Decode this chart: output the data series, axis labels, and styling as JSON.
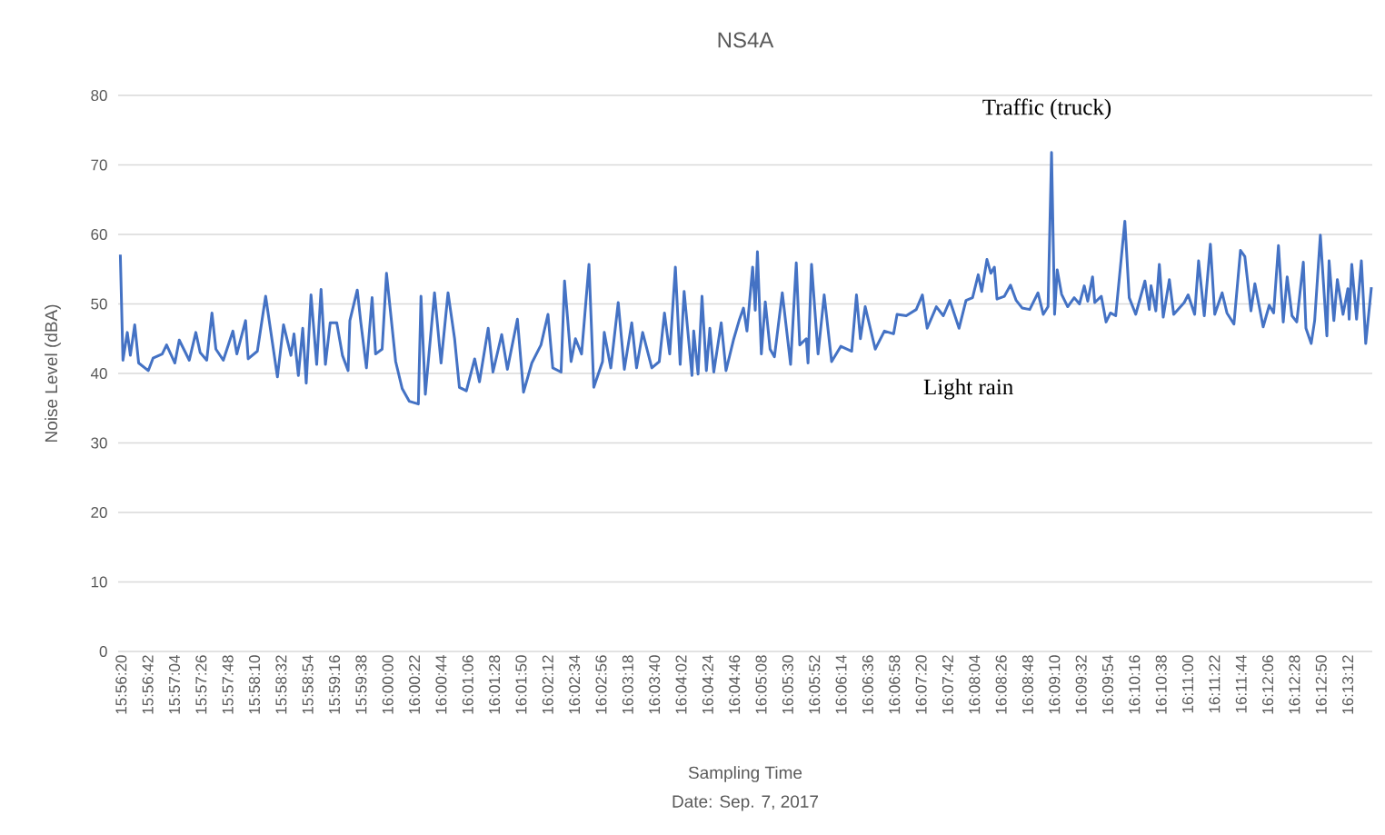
{
  "chart_data": {
    "type": "line",
    "title": "NS4A",
    "xlabel": "Sampling Time",
    "ylabel": "Noise Level (dBA)",
    "annotations": [
      "Traffic (truck)",
      "Light rain",
      "Date: Sep. 7, 2017"
    ],
    "color": "#4472c4",
    "grid": "y",
    "marker": "none",
    "line_style": "solid",
    "xlim": [
      15.9382,
      16.2256
    ],
    "ylim": [
      0,
      80
    ],
    "yticks": [
      0,
      10,
      20,
      30,
      40,
      50,
      60,
      70,
      80
    ],
    "xticks": [
      {
        "value": 15.938889,
        "label": "15:56:20"
      },
      {
        "value": 15.945,
        "label": "15:56:42"
      },
      {
        "value": 15.951111,
        "label": "15:57:04"
      },
      {
        "value": 15.957222,
        "label": "15:57:26"
      },
      {
        "value": 15.963333,
        "label": "15:57:48"
      },
      {
        "value": 15.969444,
        "label": "15:58:10"
      },
      {
        "value": 15.975556,
        "label": "15:58:32"
      },
      {
        "value": 15.981667,
        "label": "15:58:54"
      },
      {
        "value": 15.987778,
        "label": "15:59:16"
      },
      {
        "value": 15.993889,
        "label": "15:59:38"
      },
      {
        "value": 16.0,
        "label": "16:00:00"
      },
      {
        "value": 16.006111,
        "label": "16:00:22"
      },
      {
        "value": 16.012222,
        "label": "16:00:44"
      },
      {
        "value": 16.018333,
        "label": "16:01:06"
      },
      {
        "value": 16.024444,
        "label": "16:01:28"
      },
      {
        "value": 16.030556,
        "label": "16:01:50"
      },
      {
        "value": 16.036667,
        "label": "16:02:12"
      },
      {
        "value": 16.042778,
        "label": "16:02:34"
      },
      {
        "value": 16.048889,
        "label": "16:02:56"
      },
      {
        "value": 16.055,
        "label": "16:03:18"
      },
      {
        "value": 16.061111,
        "label": "16:03:40"
      },
      {
        "value": 16.067222,
        "label": "16:04:02"
      },
      {
        "value": 16.073333,
        "label": "16:04:24"
      },
      {
        "value": 16.079444,
        "label": "16:04:46"
      },
      {
        "value": 16.085556,
        "label": "16:05:08"
      },
      {
        "value": 16.091667,
        "label": "16:05:30"
      },
      {
        "value": 16.097778,
        "label": "16:05:52"
      },
      {
        "value": 16.103889,
        "label": "16:06:14"
      },
      {
        "value": 16.11,
        "label": "16:06:36"
      },
      {
        "value": 16.116111,
        "label": "16:06:58"
      },
      {
        "value": 16.122222,
        "label": "16:07:20"
      },
      {
        "value": 16.128333,
        "label": "16:07:42"
      },
      {
        "value": 16.134444,
        "label": "16:08:04"
      },
      {
        "value": 16.140556,
        "label": "16:08:26"
      },
      {
        "value": 16.146667,
        "label": "16:08:48"
      },
      {
        "value": 16.152778,
        "label": "16:09:10"
      },
      {
        "value": 16.158889,
        "label": "16:09:32"
      },
      {
        "value": 16.165,
        "label": "16:09:54"
      },
      {
        "value": 16.171111,
        "label": "16:10:16"
      },
      {
        "value": 16.177222,
        "label": "16:10:38"
      },
      {
        "value": 16.183333,
        "label": "16:11:00"
      },
      {
        "value": 16.189444,
        "label": "16:11:22"
      },
      {
        "value": 16.195556,
        "label": "16:11:44"
      },
      {
        "value": 16.201667,
        "label": "16:12:06"
      },
      {
        "value": 16.207778,
        "label": "16:12:28"
      },
      {
        "value": 16.213889,
        "label": "16:12:50"
      },
      {
        "value": 16.22,
        "label": "16:13:12"
      }
    ],
    "x": [
      15.9387,
      15.9393,
      15.9403,
      15.941,
      15.942,
      15.9429,
      15.9451,
      15.9462,
      15.9483,
      15.9493,
      15.9512,
      15.9522,
      15.9545,
      15.956,
      15.957,
      15.9585,
      15.9597,
      15.9606,
      15.9623,
      15.9645,
      15.9654,
      15.9674,
      15.968,
      15.9701,
      15.972,
      15.9747,
      15.9761,
      15.9778,
      15.9785,
      15.9795,
      15.9805,
      15.9813,
      15.9824,
      15.9837,
      15.9847,
      15.9857,
      15.9868,
      15.9883,
      15.9896,
      15.9909,
      15.9913,
      15.993,
      15.9938,
      15.9951,
      15.9964,
      15.9972,
      15.9987,
      15.9997,
      16.0018,
      16.0033,
      16.0049,
      16.007,
      16.0076,
      16.0086,
      16.0107,
      16.0122,
      16.0138,
      16.0153,
      16.0164,
      16.018,
      16.0199,
      16.021,
      16.023,
      16.0241,
      16.0261,
      16.0274,
      16.0297,
      16.0311,
      16.033,
      16.0351,
      16.0367,
      16.0378,
      16.0397,
      16.0405,
      16.042,
      16.043,
      16.0444,
      16.0461,
      16.0472,
      16.0492,
      16.0496,
      16.0511,
      16.0528,
      16.0542,
      16.0559,
      16.057,
      16.0584,
      16.0605,
      16.0622,
      16.0634,
      16.0646,
      16.0659,
      16.067,
      16.0679,
      16.0697,
      16.0701,
      16.0711,
      16.072,
      16.073,
      16.0738,
      16.0747,
      16.0764,
      16.0775,
      16.0792,
      16.0805,
      16.0815,
      16.0823,
      16.0836,
      16.0842,
      16.0847,
      16.0856,
      16.0865,
      16.0876,
      16.0886,
      16.0904,
      16.0923,
      16.0936,
      16.0944,
      16.0959,
      16.0963,
      16.0971,
      16.0986,
      16.1,
      16.1017,
      16.1038,
      16.1063,
      16.1074,
      16.1083,
      16.1094,
      16.1117,
      16.1138,
      16.1159,
      16.1167,
      16.1188,
      16.1211,
      16.1225,
      16.1236,
      16.1257,
      16.1273,
      16.1288,
      16.1309,
      16.1325,
      16.134,
      16.1353,
      16.1361,
      16.1373,
      16.1382,
      16.139,
      16.1396,
      16.1413,
      16.1427,
      16.144,
      16.1454,
      16.1471,
      16.149,
      16.1502,
      16.1513,
      16.1521,
      16.1528,
      16.1534,
      16.1544,
      16.1558,
      16.1573,
      16.1585,
      16.1596,
      16.1604,
      16.1615,
      16.162,
      16.1635,
      16.1646,
      16.1656,
      16.1668,
      16.1689,
      16.1699,
      16.1714,
      16.1735,
      16.1745,
      16.1749,
      16.176,
      16.1768,
      16.1777,
      16.1791,
      16.1801,
      16.1825,
      16.1834,
      16.1849,
      16.1858,
      16.1871,
      16.1885,
      16.1895,
      16.1912,
      16.1923,
      16.1939,
      16.1954,
      16.1964,
      16.1978,
      16.1987,
      16.2006,
      16.202,
      16.203,
      16.2041,
      16.2052,
      16.2061,
      16.2072,
      16.2083,
      16.2098,
      16.2104,
      16.2116,
      16.2124,
      16.2137,
      16.2152,
      16.2157,
      16.2168,
      16.2176,
      16.2189,
      16.22,
      16.2203,
      16.2209,
      16.222,
      16.2231,
      16.2241,
      16.2254
    ],
    "values": [
      57.1,
      41.9,
      45.9,
      42.6,
      47.0,
      41.5,
      40.4,
      42.2,
      42.8,
      44.1,
      41.5,
      44.8,
      41.9,
      45.9,
      43.0,
      41.9,
      48.7,
      43.5,
      41.9,
      46.1,
      42.8,
      47.6,
      42.1,
      43.2,
      51.1,
      39.5,
      47.0,
      42.6,
      45.7,
      39.7,
      46.5,
      38.6,
      51.3,
      41.3,
      52.1,
      41.3,
      47.3,
      47.3,
      42.6,
      40.4,
      47.6,
      52.0,
      47.4,
      40.8,
      50.9,
      42.8,
      43.5,
      54.4,
      41.7,
      37.8,
      36.0,
      35.6,
      51.1,
      37.0,
      51.6,
      41.5,
      51.6,
      45.0,
      38.0,
      37.5,
      42.1,
      38.8,
      46.5,
      40.2,
      45.6,
      40.6,
      47.8,
      37.3,
      41.5,
      44.1,
      48.5,
      40.8,
      40.2,
      53.3,
      41.7,
      45.0,
      42.8,
      55.7,
      38.0,
      41.7,
      45.9,
      40.8,
      50.2,
      40.6,
      47.3,
      40.8,
      45.9,
      40.8,
      41.7,
      48.7,
      42.8,
      55.3,
      41.3,
      51.8,
      39.7,
      46.1,
      39.9,
      51.1,
      40.4,
      46.5,
      40.2,
      47.3,
      40.4,
      44.8,
      47.6,
      49.4,
      46.1,
      55.3,
      49.1,
      57.5,
      42.8,
      50.3,
      43.5,
      42.4,
      51.6,
      41.3,
      55.9,
      44.1,
      45.0,
      41.5,
      55.7,
      42.8,
      51.3,
      41.7,
      43.9,
      43.2,
      51.3,
      45.0,
      49.6,
      43.5,
      46.1,
      45.7,
      48.5,
      48.3,
      49.2,
      51.3,
      46.5,
      49.6,
      48.3,
      50.5,
      46.5,
      50.5,
      50.9,
      54.2,
      51.8,
      56.4,
      54.4,
      55.3,
      50.7,
      51.1,
      52.7,
      50.5,
      49.4,
      49.2,
      51.6,
      48.5,
      49.6,
      71.8,
      48.5,
      54.9,
      51.4,
      49.6,
      50.9,
      50.0,
      52.6,
      50.4,
      53.9,
      50.2,
      51.1,
      47.4,
      48.7,
      48.3,
      61.9,
      50.9,
      48.5,
      53.3,
      49.2,
      52.6,
      49.0,
      55.7,
      48.1,
      53.5,
      48.5,
      50.2,
      51.3,
      48.5,
      56.2,
      48.3,
      58.6,
      48.5,
      51.6,
      48.7,
      47.1,
      57.7,
      56.8,
      49.0,
      52.9,
      46.7,
      49.8,
      48.7,
      58.4,
      47.4,
      53.9,
      48.3,
      47.4,
      56.0,
      46.5,
      44.3,
      47.6,
      59.9,
      45.4,
      56.2,
      47.6,
      53.5,
      48.5,
      52.2,
      47.8,
      55.7,
      47.8,
      56.2,
      44.3,
      52.4
    ]
  }
}
